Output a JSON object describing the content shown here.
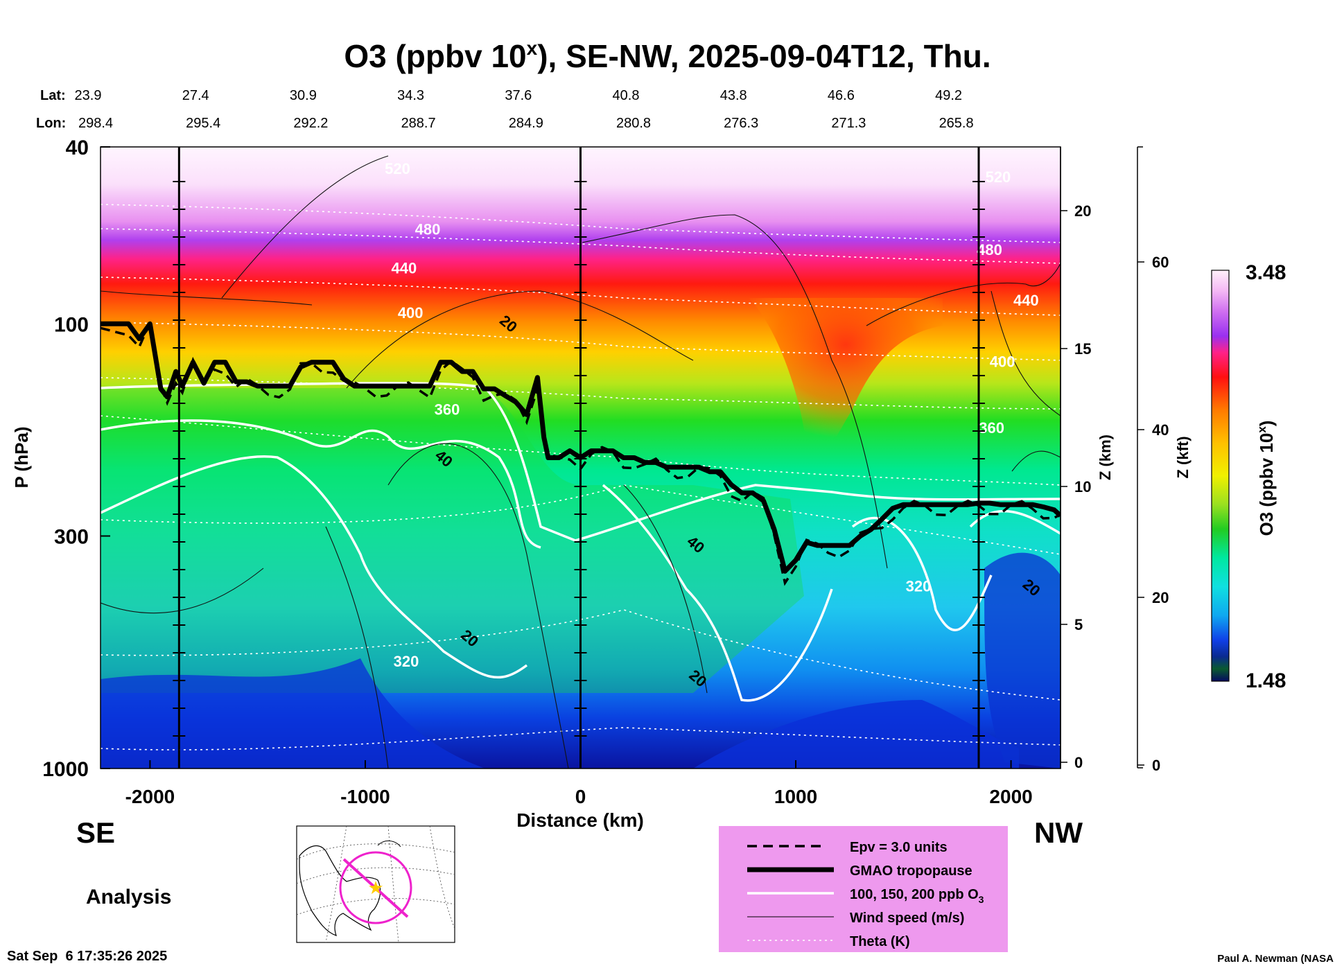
{
  "title": "O3 (ppbv 10",
  "title_sup": "x",
  "title_rest": "), SE-NW, 2025-09-04T12, Thu.",
  "lat_label": "Lat:",
  "lon_label": "Lon:",
  "lats": [
    "23.9",
    "27.4",
    "30.9",
    "34.3",
    "37.6",
    "40.8",
    "43.8",
    "46.6",
    "49.2"
  ],
  "lons": [
    "298.4",
    "295.4",
    "292.2",
    "288.7",
    "284.9",
    "280.8",
    "276.3",
    "271.3",
    "265.8"
  ],
  "y_axis_label": "P (hPa)",
  "x_axis_label": "Distance (km)",
  "z_km_label": "Z (km)",
  "z_kft_label": "Z (kft)",
  "cbar_label_pre": "O3 (ppbv 10",
  "cbar_label_sup": "x",
  "cbar_label_post": ")",
  "cbar_max": "3.48",
  "cbar_min": "1.48",
  "se_label": "SE",
  "nw_label": "NW",
  "analysis_label": "Analysis",
  "timestamp": "Sat Sep  6 17:35:26 2025",
  "credit": "Paul A. Newman (NASA",
  "legend": {
    "epv": "Epv = 3.0 units",
    "tropopause": "GMAO tropopause",
    "o3_contours": "100, 150, 200 ppb O",
    "o3_sub": "3",
    "wind": "Wind speed (m/s)",
    "theta": "Theta (K)"
  },
  "colors": {
    "legend_bg": "#ee99ee",
    "map_path": "#ee22cc",
    "map_star": "#ffcc00"
  },
  "chart_data": {
    "type": "heatmap",
    "title": "O3 (ppbv 10^x), SE-NW, 2025-09-04T12, Thu.",
    "xlabel": "Distance (km)",
    "ylabel": "P (hPa)",
    "xlim": [
      -2230,
      2230
    ],
    "ylim": [
      1000,
      40
    ],
    "x_ticks": [
      "-2000",
      "-1000",
      "0",
      "1000",
      "2000"
    ],
    "x_tick_values": [
      -2000,
      -1000,
      0,
      1000,
      2000
    ],
    "y_ticks": [
      "40",
      "100",
      "300",
      "1000"
    ],
    "y_tick_values": [
      40,
      100,
      300,
      1000
    ],
    "z_km_ticks": [
      "0",
      "5",
      "10",
      "15",
      "20"
    ],
    "z_km_values": [
      0,
      5,
      10,
      15,
      20
    ],
    "z_kft_ticks": [
      "0",
      "20",
      "40",
      "60"
    ],
    "z_kft_values": [
      0,
      20,
      40,
      60
    ],
    "colorbar_range": [
      1.48,
      3.48
    ],
    "theta_labels": [
      {
        "text": "520",
        "x": -850,
        "p": 46
      },
      {
        "text": "480",
        "x": -710,
        "p": 63
      },
      {
        "text": "440",
        "x": -820,
        "p": 77
      },
      {
        "text": "400",
        "x": -790,
        "p": 97
      },
      {
        "text": "360",
        "x": -620,
        "p": 160
      },
      {
        "text": "320",
        "x": -810,
        "p": 590
      },
      {
        "text": "520",
        "x": 1940,
        "p": 48
      },
      {
        "text": "480",
        "x": 1900,
        "p": 70
      },
      {
        "text": "440",
        "x": 2070,
        "p": 91
      },
      {
        "text": "400",
        "x": 1960,
        "p": 125
      },
      {
        "text": "360",
        "x": 1910,
        "p": 176
      },
      {
        "text": "320",
        "x": 1570,
        "p": 400
      }
    ],
    "wind_labels": [
      {
        "text": "20",
        "x": -350,
        "p": 102
      },
      {
        "text": "40",
        "x": -650,
        "p": 205
      },
      {
        "text": "20",
        "x": -530,
        "p": 520
      },
      {
        "text": "40",
        "x": 520,
        "p": 320
      },
      {
        "text": "20",
        "x": 530,
        "p": 640
      },
      {
        "text": "20",
        "x": 2080,
        "p": 400
      }
    ],
    "tropopause": {
      "x": [
        -2230,
        -2100,
        -2050,
        -2000,
        -1950,
        -1920,
        -1880,
        -1850,
        -1800,
        -1750,
        -1700,
        -1650,
        -1600,
        -1550,
        -1500,
        -1450,
        -1400,
        -1350,
        -1300,
        -1250,
        -1200,
        -1150,
        -1100,
        -1050,
        -1000,
        -950,
        -900,
        -850,
        -800,
        -750,
        -700,
        -650,
        -600,
        -550,
        -500,
        -450,
        -400,
        -350,
        -300,
        -250,
        -200,
        -170,
        -150,
        -100,
        -50,
        0,
        50,
        100,
        150,
        200,
        250,
        300,
        350,
        400,
        450,
        500,
        550,
        600,
        650,
        700,
        750,
        800,
        850,
        900,
        950,
        1000,
        1050,
        1100,
        1150,
        1200,
        1250,
        1300,
        1350,
        1400,
        1450,
        1500,
        1550,
        1600,
        1650,
        1700,
        1750,
        1800,
        1850,
        1900,
        1950,
        2000,
        2050,
        2100,
        2150,
        2200,
        2230
      ],
      "p": [
        100,
        100,
        108,
        100,
        140,
        146,
        128,
        138,
        122,
        136,
        122,
        122,
        135,
        135,
        138,
        138,
        138,
        138,
        125,
        122,
        122,
        122,
        133,
        138,
        138,
        138,
        138,
        138,
        138,
        138,
        138,
        122,
        122,
        128,
        128,
        140,
        140,
        145,
        150,
        160,
        132,
        180,
        200,
        200,
        193,
        200,
        193,
        193,
        193,
        200,
        200,
        205,
        205,
        210,
        210,
        210,
        210,
        215,
        215,
        230,
        240,
        240,
        250,
        290,
        360,
        340,
        310,
        315,
        315,
        315,
        315,
        300,
        290,
        275,
        260,
        255,
        255,
        255,
        255,
        255,
        255,
        255,
        253,
        253,
        255,
        255,
        255,
        255,
        258,
        262,
        270
      ]
    },
    "o3_contour_levels_ppb": [
      100,
      150,
      200
    ],
    "epv_level": 3.0
  }
}
